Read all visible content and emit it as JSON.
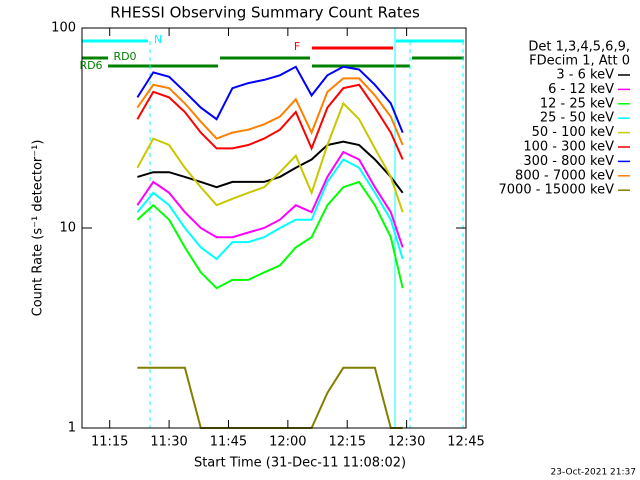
{
  "chart_data": {
    "type": "line",
    "title": "RHESSI Observing Summary Count Rates",
    "x_label": "Start Time (31-Dec-11 11:08:02)",
    "y_label": "Count Rate (s⁻¹ detector⁻¹)",
    "legend_header": [
      "Det 1,3,4,5,6,9,",
      "FDecim 1, Att 0"
    ],
    "footer": "23-Oct-2021 21:37",
    "annotations": [
      {
        "text": "N",
        "color": "#00ffff"
      },
      {
        "text": "RD0",
        "color": "#008000"
      },
      {
        "text": "RD6",
        "color": "#008000"
      },
      {
        "text": "F",
        "color": "#ff0000"
      }
    ],
    "log_scale": true,
    "xlim": [
      "11:08",
      "12:45"
    ],
    "xticks": [
      "11:15",
      "11:30",
      "11:45",
      "12:00",
      "12:15",
      "12:30",
      "12:45"
    ],
    "ylim": [
      1,
      100
    ],
    "yticks": [
      1,
      10,
      100
    ],
    "x": [
      "11:22",
      "11:26",
      "11:30",
      "11:34",
      "11:38",
      "11:42",
      "11:46",
      "11:50",
      "11:54",
      "11:58",
      "12:02",
      "12:06",
      "12:10",
      "12:14",
      "12:18",
      "12:22",
      "12:26",
      "12:29"
    ],
    "series": [
      {
        "name": "3 - 6 keV",
        "color": "#000000",
        "values": [
          18,
          19,
          19,
          18,
          17,
          16,
          17,
          17,
          17,
          18,
          20,
          22,
          26,
          27,
          26,
          22,
          18,
          15
        ]
      },
      {
        "name": "6 - 12 keV",
        "color": "#ff00ff",
        "values": [
          13,
          17,
          15,
          12,
          10,
          9,
          9,
          9.5,
          10,
          11,
          13,
          12,
          18,
          24,
          22,
          16,
          12,
          8
        ]
      },
      {
        "name": "12 - 25 keV",
        "color": "#00ff00",
        "values": [
          11,
          13,
          11,
          8,
          6,
          5,
          5.5,
          5.5,
          6,
          6.5,
          8,
          9,
          13,
          16,
          17,
          13,
          9,
          5
        ]
      },
      {
        "name": "25 - 50 keV",
        "color": "#00ffff",
        "values": [
          12,
          15,
          13,
          10,
          8,
          7,
          8.5,
          8.5,
          9,
          10,
          11,
          11,
          17,
          22,
          20,
          15,
          11,
          7
        ]
      },
      {
        "name": "50 - 100 keV",
        "color": "#c8c800",
        "values": [
          20,
          28,
          26,
          20,
          16,
          13,
          14,
          15,
          16,
          19,
          23,
          15,
          26,
          42,
          35,
          25,
          18,
          12
        ]
      },
      {
        "name": "100 - 300 keV",
        "color": "#ff0000",
        "values": [
          35,
          48,
          45,
          38,
          30,
          25,
          25,
          26,
          28,
          31,
          38,
          25,
          40,
          50,
          52,
          40,
          30,
          22
        ]
      },
      {
        "name": "300 - 800 keV",
        "color": "#0000ff",
        "values": [
          45,
          60,
          57,
          48,
          40,
          35,
          50,
          53,
          55,
          58,
          64,
          46,
          58,
          64,
          62,
          52,
          42,
          30
        ]
      },
      {
        "name": "800 - 7000 keV",
        "color": "#ff8000",
        "values": [
          40,
          52,
          50,
          42,
          34,
          28,
          30,
          31,
          33,
          36,
          44,
          30,
          48,
          56,
          56,
          46,
          36,
          26
        ]
      },
      {
        "name": "7000 - 15000 keV",
        "color": "#808000",
        "values": [
          2,
          2,
          2,
          2,
          1,
          1,
          1,
          1,
          1,
          1,
          1,
          1,
          1.5,
          2,
          2,
          2,
          1,
          1
        ]
      }
    ]
  }
}
